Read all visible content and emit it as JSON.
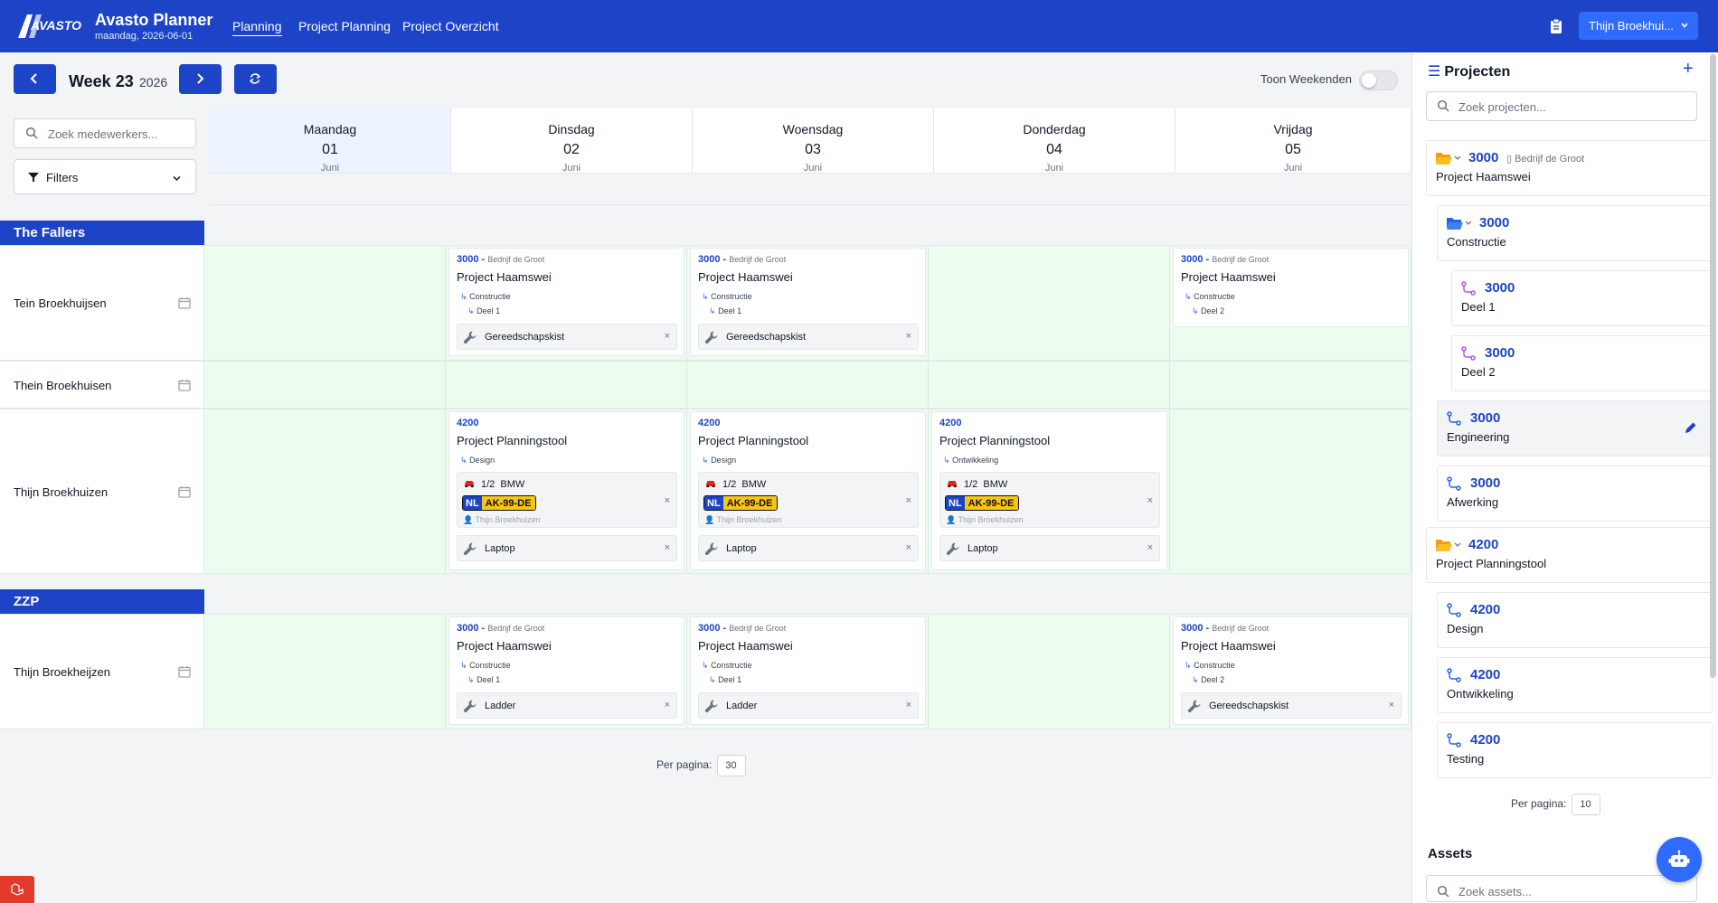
{
  "app": {
    "brand": "AVASTO",
    "title": "Avasto Planner",
    "date": "maandag, 2026-06-01"
  },
  "nav": [
    {
      "label": "Planning"
    },
    {
      "label": "Project Planning"
    },
    {
      "label": "Project Overzicht"
    }
  ],
  "user": {
    "label": "Thijn Broekhui..."
  },
  "toolbar": {
    "week": "Week 23",
    "year": "2026",
    "show_weekends": "Toon Weekenden",
    "weekends_on": false
  },
  "employee_search": {
    "placeholder": "Zoek medewerkers..."
  },
  "filters": {
    "label": "Filters"
  },
  "days": [
    {
      "name": "Maandag",
      "num": "01",
      "month": "Juni"
    },
    {
      "name": "Dinsdag",
      "num": "02",
      "month": "Juni"
    },
    {
      "name": "Woensdag",
      "num": "03",
      "month": "Juni"
    },
    {
      "name": "Donderdag",
      "num": "04",
      "month": "Juni"
    },
    {
      "name": "Vrijdag",
      "num": "05",
      "month": "Juni"
    }
  ],
  "groups": [
    {
      "name": "The Fallers"
    },
    {
      "name": "ZZP"
    }
  ],
  "employees": [
    {
      "name": "Tein Broekhuijsen"
    },
    {
      "name": "Thein Broekhuisen"
    },
    {
      "name": "Thijn Broekhuizen"
    },
    {
      "name": "Thijn Broekheijzen"
    }
  ],
  "cards": {
    "haamswei": {
      "num": "3000",
      "client": "Bedrijf de Groot",
      "name": "Project Haamswei",
      "phase": "Constructie",
      "deel1": "Deel 1",
      "deel2": "Deel 2"
    },
    "planningstool": {
      "num": "4200",
      "name": "Project Planningstool",
      "design": "Design",
      "ontwikkeling": "Ontwikkeling"
    },
    "tools": {
      "gereedschapskist": "Gereedschapskist",
      "laptop": "Laptop",
      "ladder": "Ladder"
    },
    "vehicle": {
      "seats": "1/2",
      "model": "BMW",
      "country": "NL",
      "plate": "AK-99-DE",
      "driver": "Thijn Broekhuizen"
    },
    "remove": "×"
  },
  "pagination": {
    "label": "Per pagina:",
    "value": "30"
  },
  "projects_panel": {
    "title": "Projecten",
    "search_placeholder": "Zoek projecten...",
    "items": [
      {
        "num": "3000",
        "client": "Bedrijf de Groot",
        "name": "Project Haamswei"
      },
      {
        "num": "3000",
        "name": "Constructie"
      },
      {
        "num": "3000",
        "name": "Deel 1"
      },
      {
        "num": "3000",
        "name": "Deel 2"
      },
      {
        "num": "3000",
        "name": "Engineering"
      },
      {
        "num": "3000",
        "name": "Afwerking"
      },
      {
        "num": "4200",
        "name": "Project Planningstool"
      },
      {
        "num": "4200",
        "name": "Design"
      },
      {
        "num": "4200",
        "name": "Ontwikkeling"
      },
      {
        "num": "4200",
        "name": "Testing"
      }
    ],
    "per_page_label": "Per pagina:",
    "per_page_value": "10"
  },
  "assets_panel": {
    "title": "Assets",
    "search_placeholder": "Zoek assets..."
  },
  "colors": {
    "primary": "#1d44c7",
    "accent": "#2f6bff",
    "day_cell": "#ecfdf0",
    "plate_yellow": "#f5c518"
  }
}
